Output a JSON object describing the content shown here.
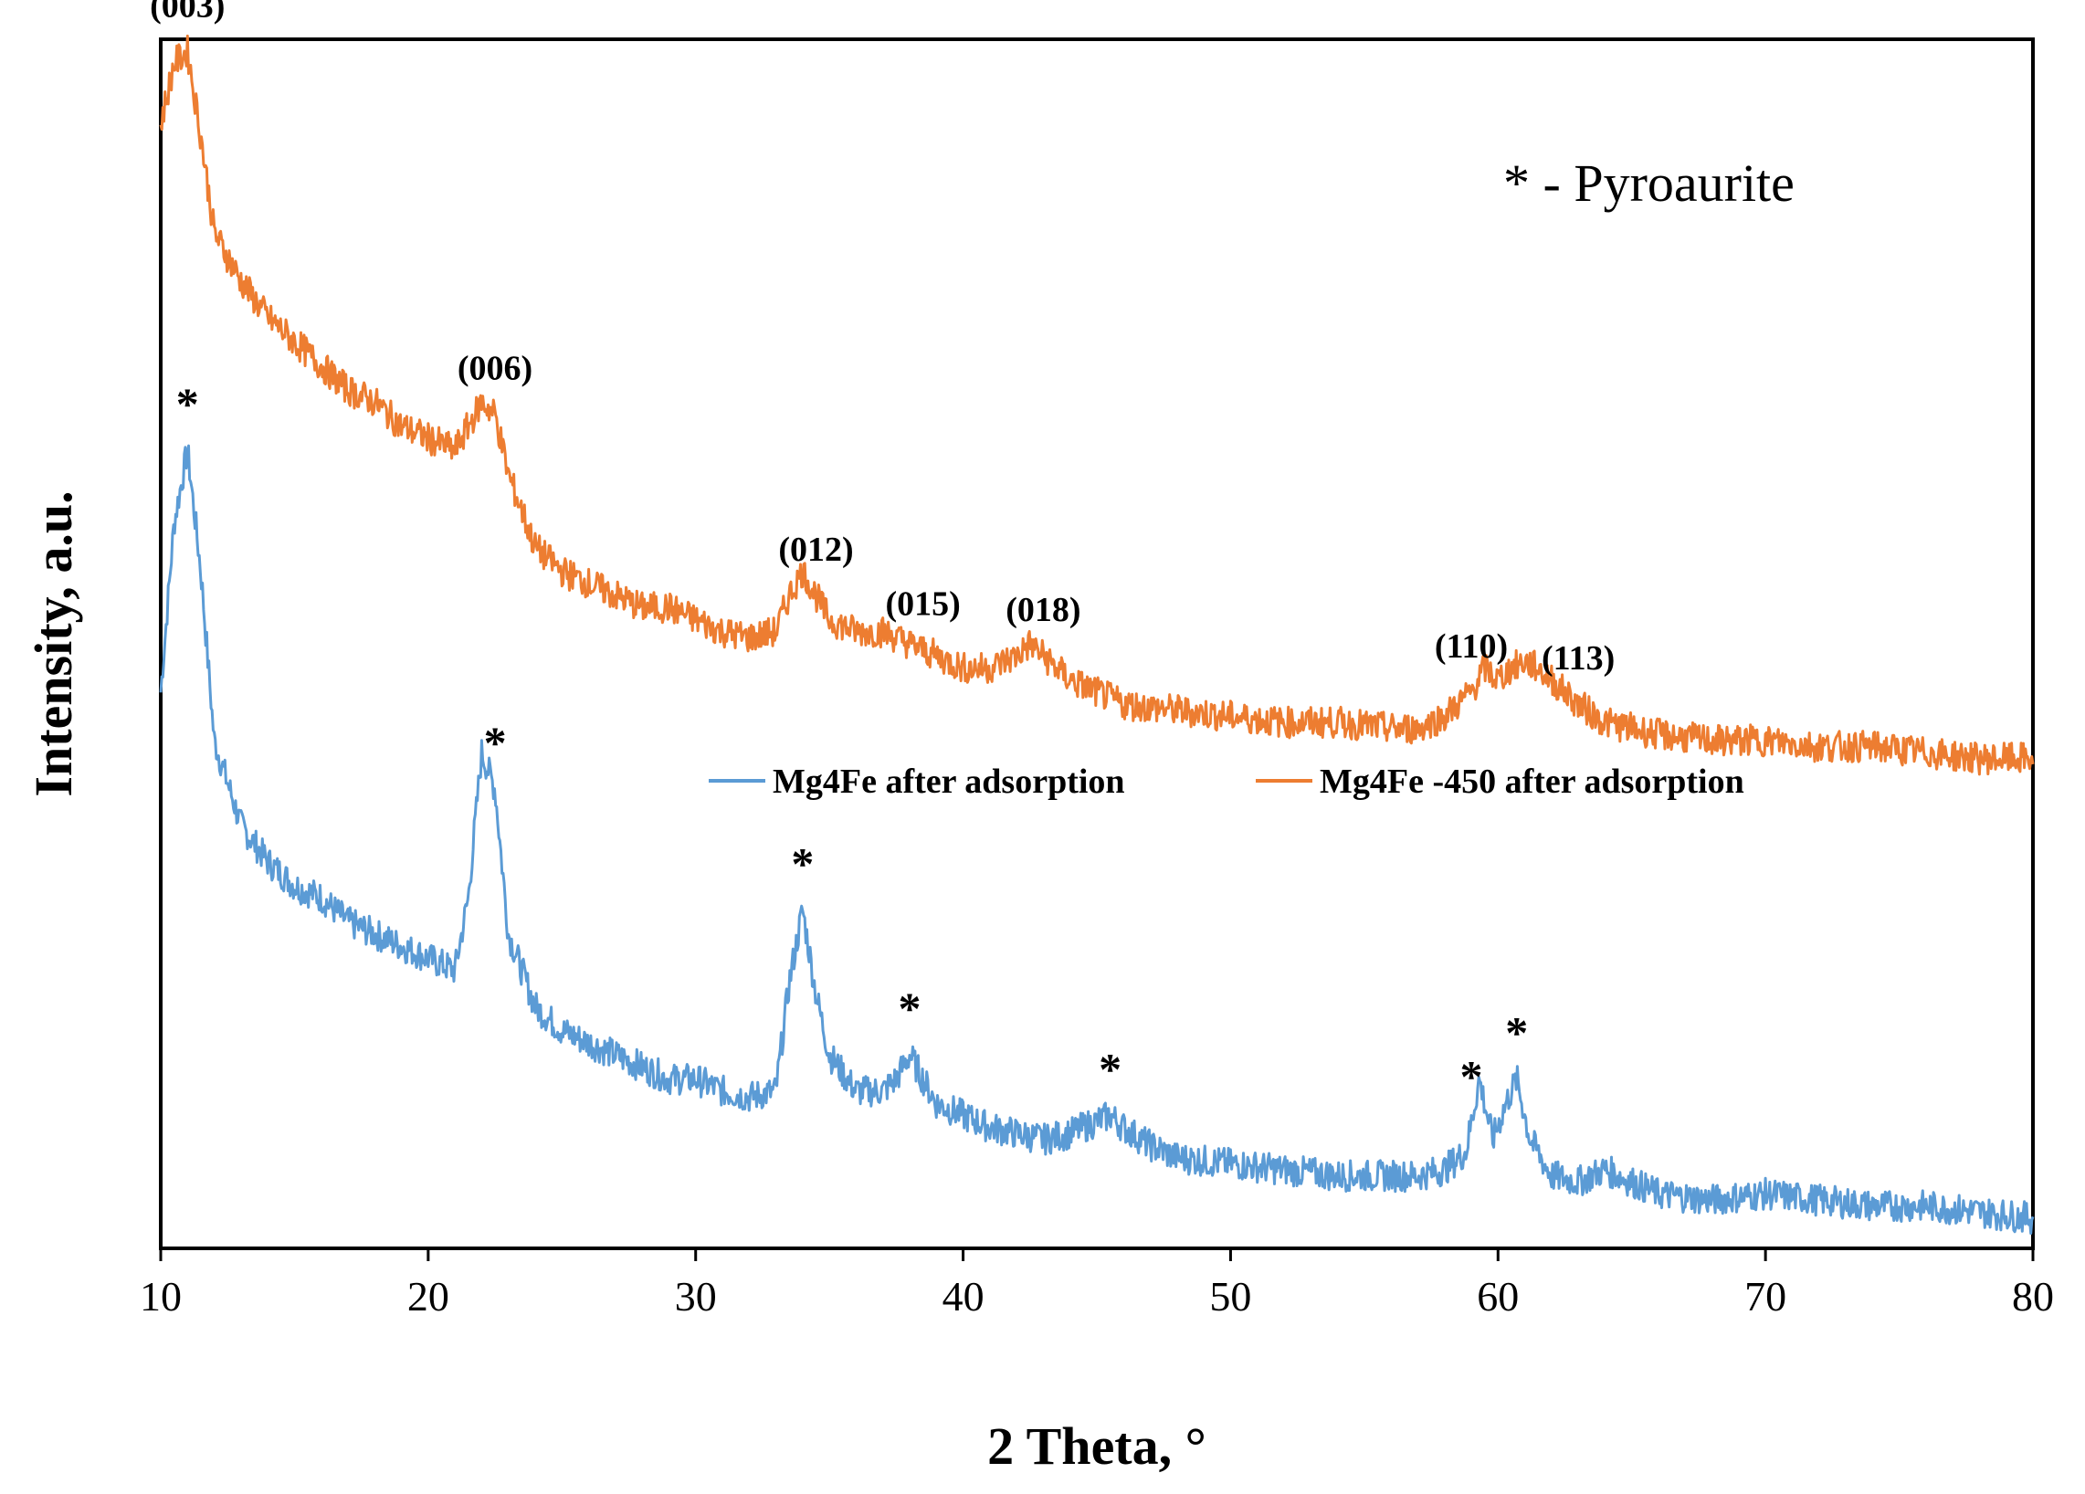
{
  "chart_data": {
    "type": "line",
    "title": "",
    "xlabel": "2 Theta, °",
    "ylabel": "Intensity, a.u.",
    "xlim": [
      10,
      80
    ],
    "ylim": [
      0,
      100
    ],
    "x_ticks": [
      10,
      20,
      30,
      40,
      50,
      60,
      70,
      80
    ],
    "y_ticks_shown": false,
    "grid": false,
    "legend_position": "center-right",
    "note": "* - Pyroaurite",
    "series": [
      {
        "name": "Mg4Fe after adsorption",
        "color": "#5B9BD5",
        "x": [
          10,
          10.5,
          11.0,
          11.5,
          12,
          13,
          14,
          15,
          16,
          17,
          18,
          19,
          20,
          21,
          21.5,
          22.0,
          22.5,
          23.0,
          24,
          25,
          26,
          27,
          28,
          29,
          30,
          31,
          32,
          33,
          33.5,
          34.0,
          34.5,
          35,
          36,
          37,
          37.5,
          38.0,
          38.5,
          39,
          40,
          41,
          42,
          43,
          44,
          45,
          45.5,
          46,
          47,
          48,
          50,
          52,
          54,
          56,
          57,
          58,
          58.8,
          59.3,
          59.8,
          60.3,
          60.7,
          61.2,
          62,
          63,
          64,
          65,
          66,
          68,
          70,
          72,
          74,
          76,
          78,
          80
        ],
        "y": [
          46,
          60,
          66,
          56,
          42,
          35,
          32,
          30,
          29,
          27,
          26,
          25,
          24,
          23,
          29,
          41,
          38,
          26,
          20,
          18,
          17,
          16,
          15,
          14,
          14,
          13,
          12.5,
          13,
          22,
          28,
          21,
          16,
          13,
          13,
          14,
          16,
          14,
          12,
          11,
          10,
          9.5,
          9,
          9.5,
          10.5,
          11,
          10,
          8.5,
          7.5,
          7,
          6.5,
          6,
          6,
          6,
          6.5,
          8,
          14,
          9,
          12,
          14,
          9,
          6,
          5.5,
          6.5,
          5.5,
          4.5,
          4,
          4.5,
          4,
          3.5,
          3.5,
          3,
          2.5
        ]
      },
      {
        "name": "Mg4Fe -450 after adsorption",
        "color": "#ED7D31",
        "x": [
          10,
          10.5,
          11.0,
          11.5,
          12,
          13,
          14,
          15,
          16,
          17,
          18,
          19,
          20,
          21,
          21.5,
          22.0,
          22.5,
          23.0,
          23.5,
          24,
          25,
          26,
          27,
          28,
          29,
          30,
          31,
          32,
          33,
          33.5,
          34.0,
          34.5,
          35,
          36,
          37,
          38,
          39,
          40,
          41,
          42,
          42.5,
          43,
          44,
          45,
          46,
          48,
          50,
          52,
          54,
          56,
          57,
          58,
          59,
          59.5,
          60,
          60.5,
          61,
          61.5,
          62,
          63,
          64,
          66,
          68,
          70,
          72,
          74,
          76,
          78,
          80
        ],
        "y": [
          93,
          98,
          99,
          92,
          84,
          80,
          77,
          75,
          73,
          71,
          70,
          68,
          67,
          66,
          68,
          70,
          69,
          64,
          61,
          58,
          56,
          55,
          54,
          53,
          53,
          52,
          51,
          50.5,
          51,
          54,
          56,
          54,
          52,
          51,
          51,
          50,
          49,
          48,
          48,
          49,
          50,
          49,
          47,
          46,
          45,
          44.5,
          44,
          43.5,
          43.5,
          43,
          43,
          44,
          46,
          48,
          47,
          48,
          48.5,
          48,
          47,
          45,
          43.5,
          42.5,
          42,
          42,
          41.5,
          41.5,
          41,
          40.5,
          40.5
        ]
      }
    ],
    "annotations": [
      {
        "text": "(003)",
        "x": 11.0,
        "series": "Mg4Fe -450 after adsorption"
      },
      {
        "text": "(006)",
        "x": 22.5,
        "series": "Mg4Fe -450 after adsorption"
      },
      {
        "text": "(012)",
        "x": 34.5,
        "series": "Mg4Fe -450 after adsorption"
      },
      {
        "text": "(015)",
        "x": 38.5,
        "series": "Mg4Fe -450 after adsorption"
      },
      {
        "text": "(018)",
        "x": 43.0,
        "series": "Mg4Fe -450 after adsorption"
      },
      {
        "text": "(110)",
        "x": 59.0,
        "series": "Mg4Fe -450 after adsorption"
      },
      {
        "text": "(113)",
        "x": 63.0,
        "series": "Mg4Fe -450 after adsorption"
      },
      {
        "text": "*",
        "x": 11.0,
        "series": "Mg4Fe after adsorption"
      },
      {
        "text": "*",
        "x": 22.5,
        "series": "Mg4Fe after adsorption"
      },
      {
        "text": "*",
        "x": 34.0,
        "series": "Mg4Fe after adsorption"
      },
      {
        "text": "*",
        "x": 38.0,
        "series": "Mg4Fe after adsorption"
      },
      {
        "text": "*",
        "x": 45.5,
        "series": "Mg4Fe after adsorption"
      },
      {
        "text": "*",
        "x": 59.0,
        "series": "Mg4Fe after adsorption"
      },
      {
        "text": "*",
        "x": 60.7,
        "series": "Mg4Fe after adsorption"
      }
    ]
  }
}
